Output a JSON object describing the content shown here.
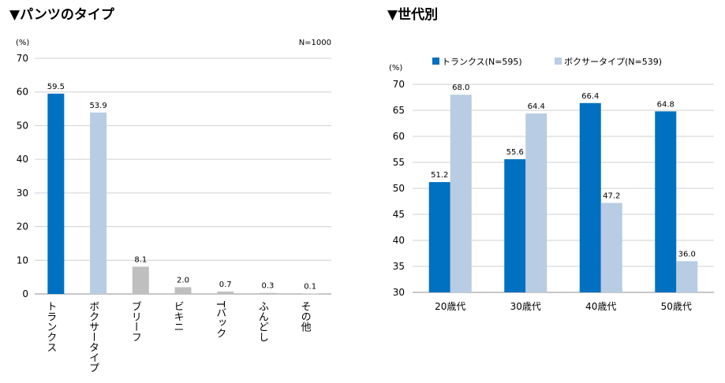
{
  "chart_data": [
    {
      "type": "bar",
      "title": "▼パンツのタイプ",
      "unit": "(%)",
      "note": "N=1000",
      "ylim": [
        0,
        70
      ],
      "yticks": [
        0,
        10,
        20,
        30,
        40,
        50,
        60,
        70
      ],
      "categories": [
        "トランクス",
        "ボクサータイプ",
        "ブリーフ",
        "ビキニ",
        "Tバック",
        "ふんどし",
        "その他"
      ],
      "values": [
        59.5,
        53.9,
        8.1,
        2.0,
        0.7,
        0.3,
        0.1
      ],
      "value_labels": [
        "59.5",
        "53.9",
        "8.1",
        "2.0",
        "0.7",
        "0.3",
        "0.1"
      ],
      "colors": [
        "#0070c0",
        "#b8cce4",
        "#bfbfbf",
        "#bfbfbf",
        "#bfbfbf",
        "#bfbfbf",
        "#bfbfbf"
      ],
      "grid": true
    },
    {
      "type": "bar",
      "title": "▼世代別",
      "unit": "(%)",
      "ylim": [
        30,
        70
      ],
      "yticks": [
        30,
        35,
        40,
        45,
        50,
        55,
        60,
        65,
        70
      ],
      "categories": [
        "20歳代",
        "30歳代",
        "40歳代",
        "50歳代"
      ],
      "legend_position": "top",
      "series": [
        {
          "name": "トランクス(N=595)",
          "color": "#0070c0",
          "values": [
            51.2,
            55.6,
            66.4,
            64.8
          ],
          "value_labels": [
            "51.2",
            "55.6",
            "66.4",
            "64.8"
          ]
        },
        {
          "name": "ボクサータイプ(N=539)",
          "color": "#b8cce4",
          "values": [
            68.0,
            64.4,
            47.2,
            36.0
          ],
          "value_labels": [
            "68.0",
            "64.4",
            "47.2",
            "36.0"
          ]
        }
      ],
      "grid": true
    }
  ]
}
